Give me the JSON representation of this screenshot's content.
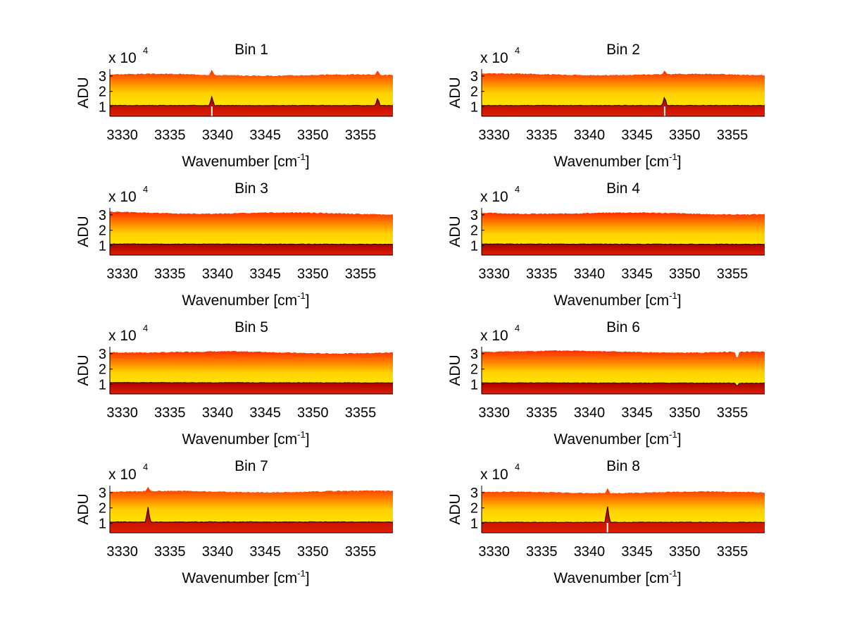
{
  "figure": {
    "background": "#ffffff"
  },
  "colors": {
    "top": "#ff2a00",
    "mid": "#ffd000",
    "bright": "#fff400",
    "baseTop": "#a80000",
    "baseBottom": "#e02000",
    "edge": "#000000"
  },
  "chart_data": [
    {
      "type": "area",
      "title": "Bin 1",
      "xlabel": "Wavenumber [cm",
      "xlabel_sup": "-1",
      "xlabel_close": "]",
      "ylabel": "ADU",
      "exponent_prefix": "x 10",
      "exponent_sup": "4",
      "xlim": [
        3328.7,
        3358.4
      ],
      "ylim": [
        0.38,
        3.45
      ],
      "xticks": [
        3330,
        3335,
        3340,
        3345,
        3350,
        3355
      ],
      "xtick_labels": [
        "3330",
        "3335",
        "3340",
        "3345",
        "3350",
        "3355"
      ],
      "yticks": [
        1,
        2,
        3
      ],
      "ytick_labels": [
        "1",
        "2",
        "3"
      ],
      "series": [
        {
          "name": "upper",
          "level": 3.1,
          "tilt": -0.06
        },
        {
          "name": "lower",
          "level": 1.08,
          "tilt": 0
        }
      ],
      "features": [
        {
          "x": 3339.4,
          "upper_delta": 0.35,
          "lower_delta": 0.6,
          "dip": -0.5
        },
        {
          "x": 3356.8,
          "upper_delta": 0.3,
          "lower_delta": 0.5,
          "dip": 0
        }
      ]
    },
    {
      "type": "area",
      "title": "Bin 2",
      "xlabel": "Wavenumber [cm",
      "xlabel_sup": "-1",
      "xlabel_close": "]",
      "ylabel": "ADU",
      "exponent_prefix": "x 10",
      "exponent_sup": "4",
      "xlim": [
        3328.7,
        3358.4
      ],
      "ylim": [
        0.38,
        3.45
      ],
      "xticks": [
        3330,
        3335,
        3340,
        3345,
        3350,
        3355
      ],
      "xtick_labels": [
        "3330",
        "3335",
        "3340",
        "3345",
        "3350",
        "3355"
      ],
      "yticks": [
        1,
        2,
        3
      ],
      "ytick_labels": [
        "1",
        "2",
        "3"
      ],
      "series": [
        {
          "name": "upper",
          "level": 3.12,
          "tilt": -0.05
        },
        {
          "name": "lower",
          "level": 1.08,
          "tilt": 0
        }
      ],
      "features": [
        {
          "x": 3347.9,
          "upper_delta": 0.3,
          "lower_delta": 0.6,
          "dip": -0.45
        }
      ]
    },
    {
      "type": "area",
      "title": "Bin 3",
      "xlabel": "Wavenumber [cm",
      "xlabel_sup": "-1",
      "xlabel_close": "]",
      "ylabel": "ADU",
      "exponent_prefix": "x 10",
      "exponent_sup": "4",
      "xlim": [
        3328.7,
        3358.4
      ],
      "ylim": [
        0.38,
        3.45
      ],
      "xticks": [
        3330,
        3335,
        3340,
        3345,
        3350,
        3355
      ],
      "xtick_labels": [
        "3330",
        "3335",
        "3340",
        "3345",
        "3350",
        "3355"
      ],
      "yticks": [
        1,
        2,
        3
      ],
      "ytick_labels": [
        "1",
        "2",
        "3"
      ],
      "series": [
        {
          "name": "upper",
          "level": 3.15,
          "tilt": -0.08
        },
        {
          "name": "lower",
          "level": 1.1,
          "tilt": -0.02
        }
      ],
      "features": []
    },
    {
      "type": "area",
      "title": "Bin 4",
      "xlabel": "Wavenumber [cm",
      "xlabel_sup": "-1",
      "xlabel_close": "]",
      "ylabel": "ADU",
      "exponent_prefix": "x 10",
      "exponent_sup": "4",
      "xlim": [
        3328.7,
        3358.4
      ],
      "ylim": [
        0.38,
        3.45
      ],
      "xticks": [
        3330,
        3335,
        3340,
        3345,
        3350,
        3355
      ],
      "xtick_labels": [
        "3330",
        "3335",
        "3340",
        "3345",
        "3350",
        "3355"
      ],
      "yticks": [
        1,
        2,
        3
      ],
      "ytick_labels": [
        "1",
        "2",
        "3"
      ],
      "series": [
        {
          "name": "upper",
          "level": 3.13,
          "tilt": -0.06
        },
        {
          "name": "lower",
          "level": 1.1,
          "tilt": -0.02
        }
      ],
      "features": []
    },
    {
      "type": "area",
      "title": "Bin 5",
      "xlabel": "Wavenumber [cm",
      "xlabel_sup": "-1",
      "xlabel_close": "]",
      "ylabel": "ADU",
      "exponent_prefix": "x 10",
      "exponent_sup": "4",
      "xlim": [
        3328.7,
        3358.4
      ],
      "ylim": [
        0.38,
        3.45
      ],
      "xticks": [
        3330,
        3335,
        3340,
        3345,
        3350,
        3355
      ],
      "xtick_labels": [
        "3330",
        "3335",
        "3340",
        "3345",
        "3350",
        "3355"
      ],
      "yticks": [
        1,
        2,
        3
      ],
      "ytick_labels": [
        "1",
        "2",
        "3"
      ],
      "series": [
        {
          "name": "upper",
          "level": 3.13,
          "tilt": -0.08
        },
        {
          "name": "lower",
          "level": 1.12,
          "tilt": -0.02
        }
      ],
      "features": []
    },
    {
      "type": "area",
      "title": "Bin 6",
      "xlabel": "Wavenumber [cm",
      "xlabel_sup": "-1",
      "xlabel_close": "]",
      "ylabel": "ADU",
      "exponent_prefix": "x 10",
      "exponent_sup": "4",
      "xlim": [
        3328.7,
        3358.4
      ],
      "ylim": [
        0.38,
        3.45
      ],
      "xticks": [
        3330,
        3335,
        3340,
        3345,
        3350,
        3355
      ],
      "xtick_labels": [
        "3330",
        "3335",
        "3340",
        "3345",
        "3350",
        "3355"
      ],
      "yticks": [
        1,
        2,
        3
      ],
      "ytick_labels": [
        "1",
        "2",
        "3"
      ],
      "series": [
        {
          "name": "upper",
          "level": 3.17,
          "tilt": -0.08
        },
        {
          "name": "lower",
          "level": 1.1,
          "tilt": -0.02
        }
      ],
      "features": [
        {
          "x": 3355.5,
          "upper_delta": -0.45,
          "lower_delta": -0.2,
          "dip": 0
        }
      ]
    },
    {
      "type": "area",
      "title": "Bin 7",
      "xlabel": "Wavenumber [cm",
      "xlabel_sup": "-1",
      "xlabel_close": "]",
      "ylabel": "ADU",
      "exponent_prefix": "x 10",
      "exponent_sup": "4",
      "xlim": [
        3328.7,
        3358.4
      ],
      "ylim": [
        0.38,
        3.45
      ],
      "xticks": [
        3330,
        3335,
        3340,
        3345,
        3350,
        3355
      ],
      "xtick_labels": [
        "3330",
        "3335",
        "3340",
        "3345",
        "3350",
        "3355"
      ],
      "yticks": [
        1,
        2,
        3
      ],
      "ytick_labels": [
        "1",
        "2",
        "3"
      ],
      "series": [
        {
          "name": "upper",
          "level": 3.05,
          "tilt": 0.02
        },
        {
          "name": "lower",
          "level": 1.08,
          "tilt": 0
        }
      ],
      "features": [
        {
          "x": 3332.7,
          "upper_delta": 0.3,
          "lower_delta": 1.0,
          "dip": 0
        }
      ]
    },
    {
      "type": "area",
      "title": "Bin 8",
      "xlabel": "Wavenumber [cm",
      "xlabel_sup": "-1",
      "xlabel_close": "]",
      "ylabel": "ADU",
      "exponent_prefix": "x 10",
      "exponent_sup": "4",
      "xlim": [
        3328.7,
        3358.4
      ],
      "ylim": [
        0.38,
        3.45
      ],
      "xticks": [
        3330,
        3335,
        3340,
        3345,
        3350,
        3355
      ],
      "xtick_labels": [
        "3330",
        "3335",
        "3340",
        "3345",
        "3350",
        "3355"
      ],
      "yticks": [
        1,
        2,
        3
      ],
      "ytick_labels": [
        "1",
        "2",
        "3"
      ],
      "series": [
        {
          "name": "upper",
          "level": 3.0,
          "tilt": 0.02
        },
        {
          "name": "lower",
          "level": 1.06,
          "tilt": 0
        }
      ],
      "features": [
        {
          "x": 3341.9,
          "upper_delta": 0.35,
          "lower_delta": 1.1,
          "dip": -0.45
        }
      ]
    }
  ]
}
